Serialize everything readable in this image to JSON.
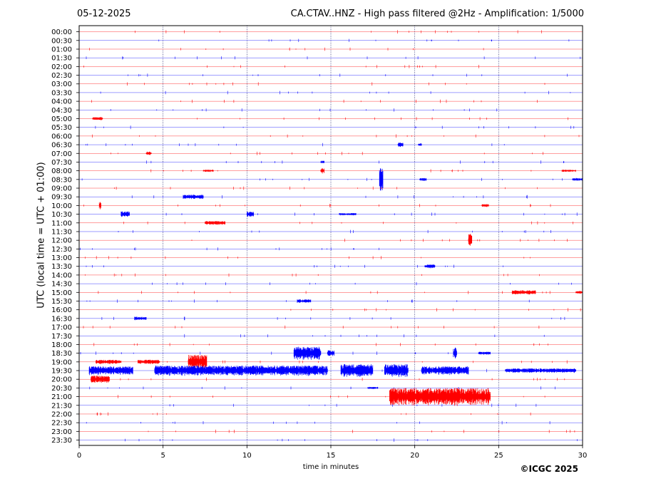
{
  "header": {
    "date": "05-12-2025",
    "title": "CA.CTAV..HNZ - High pass filtered @2Hz - Amplification: 1/5000"
  },
  "footer": {
    "copyright": "©ICGC 2025"
  },
  "chart_data": {
    "type": "line",
    "title": "CA.CTAV..HNZ - High pass filtered @2Hz - Amplification: 1/5000",
    "xlabel": "time in minutes",
    "ylabel": "UTC (local time = UTC + 01:00)",
    "xlim": [
      0,
      30
    ],
    "x_ticks": [
      0,
      5,
      10,
      15,
      20,
      25,
      30
    ],
    "grid": "vertical dotted at 5-minute ticks",
    "trace_colors": [
      "#ff0000",
      "#0000ff"
    ],
    "rows": [
      "00:00",
      "00:30",
      "01:00",
      "01:30",
      "02:00",
      "02:30",
      "03:00",
      "03:30",
      "04:00",
      "04:30",
      "05:00",
      "05:30",
      "06:00",
      "06:30",
      "07:00",
      "07:30",
      "08:00",
      "08:30",
      "09:00",
      "09:30",
      "10:00",
      "10:30",
      "11:00",
      "11:30",
      "12:00",
      "12:30",
      "13:00",
      "13:30",
      "14:00",
      "14:30",
      "15:00",
      "15:30",
      "16:00",
      "16:30",
      "17:00",
      "17:30",
      "18:00",
      "18:30",
      "19:00",
      "19:30",
      "20:00",
      "20:30",
      "21:00",
      "21:30",
      "22:00",
      "22:30",
      "23:00",
      "23:30"
    ],
    "events": [
      {
        "row": "05:00",
        "start": 0.8,
        "end": 1.4,
        "amplitude": 2
      },
      {
        "row": "06:30",
        "start": 19.0,
        "end": 19.3,
        "amplitude": 3
      },
      {
        "row": "06:30",
        "start": 20.2,
        "end": 20.4,
        "amplitude": 2
      },
      {
        "row": "07:00",
        "start": 4.0,
        "end": 4.3,
        "amplitude": 2.5
      },
      {
        "row": "07:30",
        "start": 14.4,
        "end": 14.6,
        "amplitude": 2
      },
      {
        "row": "08:00",
        "start": 7.4,
        "end": 8.0,
        "amplitude": 1.5
      },
      {
        "row": "08:00",
        "start": 14.4,
        "end": 14.6,
        "amplitude": 4
      },
      {
        "row": "08:00",
        "start": 28.8,
        "end": 29.6,
        "amplitude": 1.5
      },
      {
        "row": "08:30",
        "start": 17.9,
        "end": 18.1,
        "amplitude": 16
      },
      {
        "row": "08:30",
        "start": 20.3,
        "end": 20.7,
        "amplitude": 2
      },
      {
        "row": "08:30",
        "start": 29.4,
        "end": 30.0,
        "amplitude": 2
      },
      {
        "row": "09:30",
        "start": 6.2,
        "end": 7.4,
        "amplitude": 3
      },
      {
        "row": "10:00",
        "start": 1.2,
        "end": 1.3,
        "amplitude": 6
      },
      {
        "row": "10:00",
        "start": 24.0,
        "end": 24.4,
        "amplitude": 2
      },
      {
        "row": "10:30",
        "start": 2.5,
        "end": 3.0,
        "amplitude": 4
      },
      {
        "row": "10:30",
        "start": 10.0,
        "end": 10.4,
        "amplitude": 3.5
      },
      {
        "row": "10:30",
        "start": 15.5,
        "end": 16.5,
        "amplitude": 1.5
      },
      {
        "row": "11:00",
        "start": 7.5,
        "end": 8.7,
        "amplitude": 2.5
      },
      {
        "row": "12:00",
        "start": 23.2,
        "end": 23.4,
        "amplitude": 9
      },
      {
        "row": "13:30",
        "start": 20.6,
        "end": 21.2,
        "amplitude": 2.5
      },
      {
        "row": "15:00",
        "start": 25.8,
        "end": 27.2,
        "amplitude": 3
      },
      {
        "row": "15:00",
        "start": 29.6,
        "end": 30.0,
        "amplitude": 2
      },
      {
        "row": "15:30",
        "start": 13.0,
        "end": 13.8,
        "amplitude": 2.5
      },
      {
        "row": "16:30",
        "start": 3.3,
        "end": 4.0,
        "amplitude": 2.5
      },
      {
        "row": "18:30",
        "start": 12.8,
        "end": 14.4,
        "amplitude": 9
      },
      {
        "row": "18:30",
        "start": 14.8,
        "end": 15.2,
        "amplitude": 4
      },
      {
        "row": "18:30",
        "start": 22.3,
        "end": 22.5,
        "amplitude": 8
      },
      {
        "row": "18:30",
        "start": 23.8,
        "end": 24.5,
        "amplitude": 2
      },
      {
        "row": "19:00",
        "start": 1.0,
        "end": 2.5,
        "amplitude": 3
      },
      {
        "row": "19:00",
        "start": 3.5,
        "end": 4.8,
        "amplitude": 3
      },
      {
        "row": "19:00",
        "start": 6.5,
        "end": 7.6,
        "amplitude": 10
      },
      {
        "row": "19:30",
        "start": 0.6,
        "end": 3.2,
        "amplitude": 6
      },
      {
        "row": "19:30",
        "start": 4.5,
        "end": 12.5,
        "amplitude": 7
      },
      {
        "row": "19:30",
        "start": 12.5,
        "end": 14.8,
        "amplitude": 7
      },
      {
        "row": "19:30",
        "start": 15.6,
        "end": 17.5,
        "amplitude": 9
      },
      {
        "row": "19:30",
        "start": 18.2,
        "end": 19.6,
        "amplitude": 9
      },
      {
        "row": "19:30",
        "start": 20.4,
        "end": 23.2,
        "amplitude": 6
      },
      {
        "row": "19:30",
        "start": 25.4,
        "end": 29.6,
        "amplitude": 3
      },
      {
        "row": "20:00",
        "start": 0.7,
        "end": 1.8,
        "amplitude": 5
      },
      {
        "row": "20:30",
        "start": 17.2,
        "end": 17.8,
        "amplitude": 1.5
      },
      {
        "row": "21:00",
        "start": 18.5,
        "end": 24.5,
        "amplitude": 12
      }
    ]
  }
}
